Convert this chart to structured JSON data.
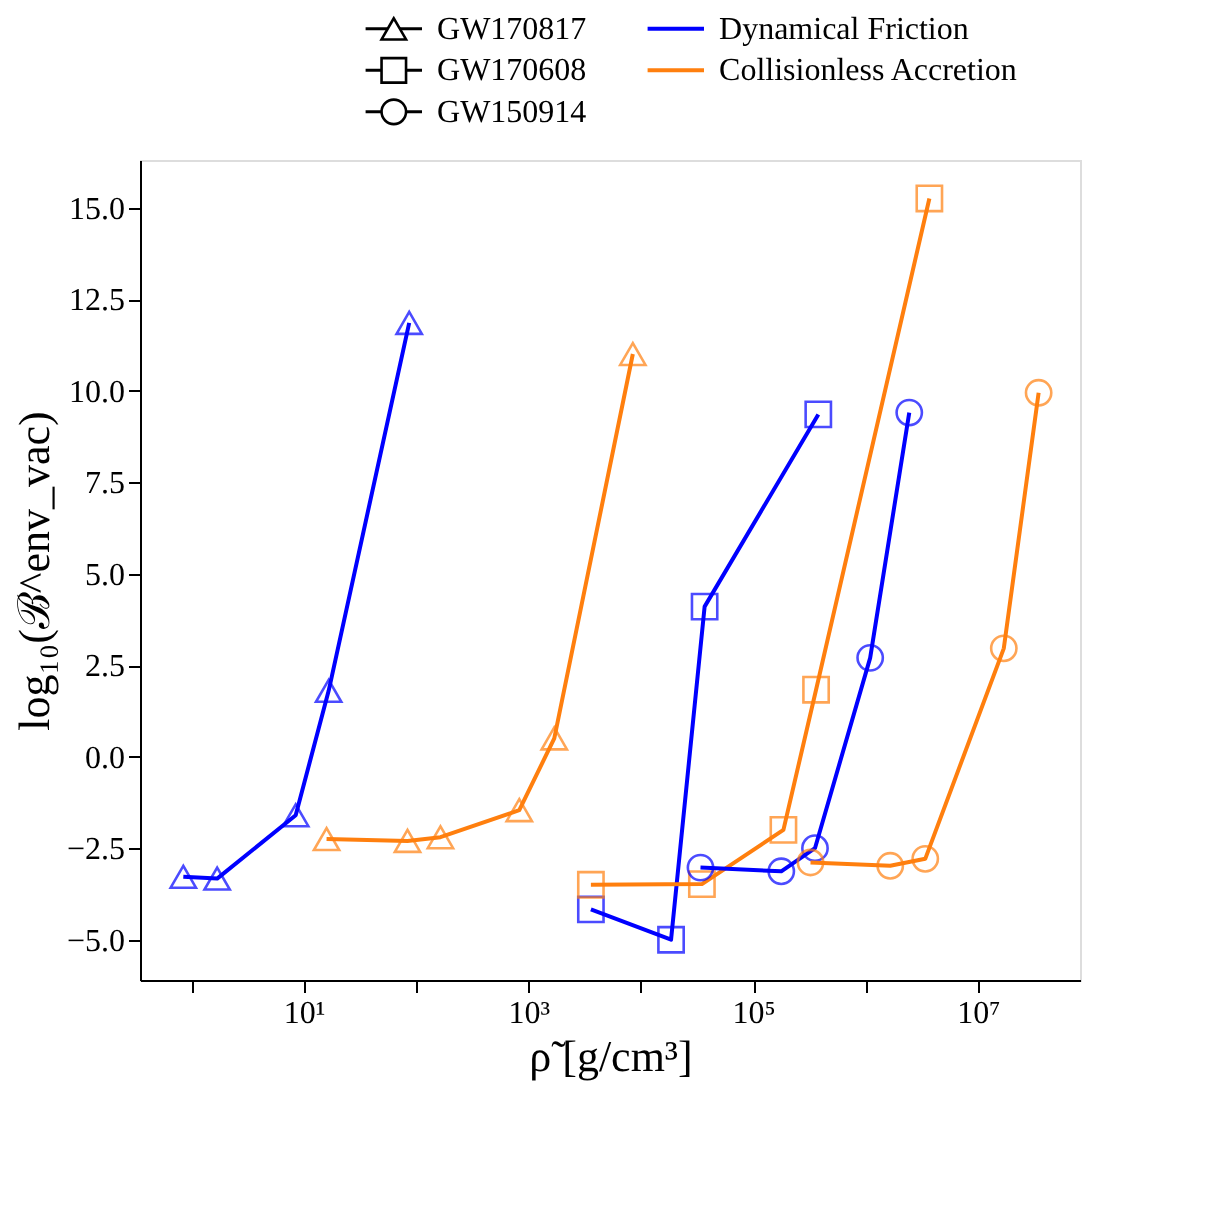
{
  "chart_data": {
    "type": "line",
    "xlabel": "ρ̃ [g/cm³]",
    "ylabel": "log₁₀(ℬ^env_vac)",
    "annotations": [
      "GW170817",
      "GW170608",
      "GW150914",
      "Dynamical Friction",
      "Collisionless Accretion"
    ],
    "log": "x",
    "xlim": [
      0.35,
      81000000
    ],
    "xticks": [
      {
        "value": 1,
        "label": null
      },
      {
        "value": 10,
        "label": "10¹"
      },
      {
        "value": 100,
        "label": null
      },
      {
        "value": 1000,
        "label": "10³"
      },
      {
        "value": 10000,
        "label": null
      },
      {
        "value": 100000,
        "label": "10⁵"
      },
      {
        "value": 1000000,
        "label": null
      },
      {
        "value": 10000000,
        "label": "10⁷"
      }
    ],
    "ylim": [
      -6.1,
      16.3
    ],
    "yticks": [
      {
        "value": -5,
        "label": "−5.0"
      },
      {
        "value": -2.5,
        "label": "−2.5"
      },
      {
        "value": 0,
        "label": "0.0"
      },
      {
        "value": 2.5,
        "label": "2.5"
      },
      {
        "value": 5,
        "label": "5.0"
      },
      {
        "value": 7.5,
        "label": "7.5"
      },
      {
        "value": 10,
        "label": "10.0"
      },
      {
        "value": 12.5,
        "label": "12.5"
      },
      {
        "value": 15,
        "label": "15.0"
      }
    ],
    "grid": false,
    "series": [
      {
        "color": "#0000ff",
        "marker": "triangle",
        "x": [
          0.85,
          1.7,
          8.5,
          16.7,
          87
        ],
        "values": [
          -3.28,
          -3.33,
          -1.6,
          1.8,
          11.85
        ]
      },
      {
        "color": "#ff7f0e",
        "marker": "triangle",
        "x": [
          16,
          84,
          165,
          830,
          1700,
          8500
        ],
        "values": [
          -2.25,
          -2.3,
          -2.2,
          -1.46,
          0.5,
          11.0
        ]
      },
      {
        "color": "#0000ff",
        "marker": "square",
        "x": [
          3600,
          18600,
          37000,
          380000
        ],
        "values": [
          -4.17,
          -5.0,
          4.1,
          9.35
        ]
      },
      {
        "color": "#ff7f0e",
        "marker": "square",
        "x": [
          3600,
          35000,
          186000,
          363000,
          3700000
        ],
        "values": [
          -3.5,
          -3.48,
          -2.0,
          1.83,
          15.25
        ]
      },
      {
        "color": "#0000ff",
        "marker": "circle",
        "x": [
          34000,
          178000,
          355000,
          1100000,
          2450000
        ],
        "values": [
          -3.03,
          -3.13,
          -2.5,
          2.7,
          9.4
        ]
      },
      {
        "color": "#ff7f0e",
        "marker": "circle",
        "x": [
          324000,
          1660000,
          3400000,
          17000000,
          34700000
        ],
        "values": [
          -2.89,
          -2.98,
          -2.79,
          2.96,
          9.94
        ]
      }
    ]
  }
}
